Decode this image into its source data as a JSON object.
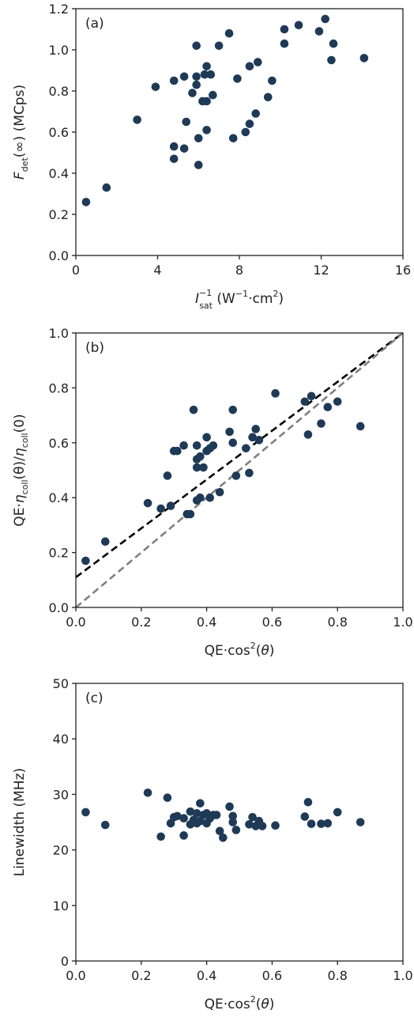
{
  "chart_data": [
    {
      "type": "scatter",
      "panel_label": "(a)",
      "xlabel": {
        "base": "I",
        "sub": "sat",
        "sup": "−1",
        "unit": "(W",
        "unit_sup": "−1",
        "unit_mid": "·cm",
        "unit_sup2": "2",
        "unit_end": ")"
      },
      "ylabel": {
        "base": "F",
        "sub": "det",
        "rest": "(∞) (MCps)"
      },
      "xlim": [
        0,
        16
      ],
      "ylim": [
        0,
        1.2
      ],
      "xticks": [
        "0",
        "4",
        "8",
        "12",
        "16"
      ],
      "yticks": [
        "0.0",
        "0.2",
        "0.4",
        "0.6",
        "0.8",
        "1.0",
        "1.2"
      ],
      "grid": false,
      "marker_color": "#1f3a56",
      "points": [
        [
          0.5,
          0.26
        ],
        [
          1.5,
          0.33
        ],
        [
          3.0,
          0.66
        ],
        [
          3.9,
          0.82
        ],
        [
          4.8,
          0.85
        ],
        [
          4.8,
          0.53
        ],
        [
          4.8,
          0.47
        ],
        [
          5.3,
          0.87
        ],
        [
          5.3,
          0.52
        ],
        [
          5.4,
          0.65
        ],
        [
          5.7,
          0.79
        ],
        [
          5.9,
          1.02
        ],
        [
          5.9,
          0.87
        ],
        [
          5.9,
          0.83
        ],
        [
          6.0,
          0.57
        ],
        [
          6.0,
          0.44
        ],
        [
          6.2,
          0.75
        ],
        [
          6.3,
          0.88
        ],
        [
          6.4,
          0.92
        ],
        [
          6.4,
          0.75
        ],
        [
          6.4,
          0.61
        ],
        [
          6.6,
          0.88
        ],
        [
          6.7,
          0.78
        ],
        [
          7.0,
          1.02
        ],
        [
          7.5,
          1.08
        ],
        [
          7.7,
          0.57
        ],
        [
          7.9,
          0.86
        ],
        [
          8.3,
          0.6
        ],
        [
          8.5,
          0.92
        ],
        [
          8.5,
          0.64
        ],
        [
          8.9,
          0.94
        ],
        [
          8.8,
          0.69
        ],
        [
          9.4,
          0.77
        ],
        [
          9.6,
          0.85
        ],
        [
          10.2,
          1.1
        ],
        [
          10.2,
          1.03
        ],
        [
          10.9,
          1.12
        ],
        [
          11.9,
          1.09
        ],
        [
          12.2,
          1.15
        ],
        [
          12.5,
          0.95
        ],
        [
          12.6,
          1.03
        ],
        [
          14.1,
          0.96
        ]
      ]
    },
    {
      "type": "scatter",
      "panel_label": "(b)",
      "xlabel": {
        "pre": "QE·cos",
        "sup": "2",
        "paren_open": "(",
        "theta": "θ",
        "paren_close": ")"
      },
      "ylabel": {
        "pre": "QE·",
        "eta": "η",
        "sub": "coll",
        "mid": "(θ)/",
        "eta2": "η",
        "sub2": "coll",
        "end": "(0)"
      },
      "xlim": [
        0,
        1.0
      ],
      "ylim": [
        0,
        1.0
      ],
      "xticks": [
        "0.0",
        "0.2",
        "0.4",
        "0.6",
        "0.8",
        "1.0"
      ],
      "yticks": [
        "0.0",
        "0.2",
        "0.4",
        "0.6",
        "0.8",
        "1.0"
      ],
      "grid": false,
      "marker_color": "#1f3a56",
      "lines": [
        {
          "style": "dashed",
          "color": "#000000",
          "x": [
            0,
            1.0
          ],
          "y": [
            0.11,
            1.0
          ]
        },
        {
          "style": "dashed",
          "color": "#808080",
          "x": [
            0,
            1.0
          ],
          "y": [
            0.0,
            1.0
          ]
        }
      ],
      "points": [
        [
          0.03,
          0.17
        ],
        [
          0.09,
          0.24
        ],
        [
          0.22,
          0.38
        ],
        [
          0.26,
          0.36
        ],
        [
          0.28,
          0.48
        ],
        [
          0.29,
          0.37
        ],
        [
          0.3,
          0.57
        ],
        [
          0.31,
          0.57
        ],
        [
          0.33,
          0.59
        ],
        [
          0.34,
          0.34
        ],
        [
          0.35,
          0.34
        ],
        [
          0.36,
          0.72
        ],
        [
          0.37,
          0.59
        ],
        [
          0.37,
          0.54
        ],
        [
          0.37,
          0.51
        ],
        [
          0.38,
          0.55
        ],
        [
          0.38,
          0.4
        ],
        [
          0.37,
          0.39
        ],
        [
          0.39,
          0.51
        ],
        [
          0.4,
          0.57
        ],
        [
          0.4,
          0.62
        ],
        [
          0.41,
          0.58
        ],
        [
          0.41,
          0.4
        ],
        [
          0.42,
          0.59
        ],
        [
          0.44,
          0.42
        ],
        [
          0.47,
          0.64
        ],
        [
          0.48,
          0.72
        ],
        [
          0.48,
          0.6
        ],
        [
          0.49,
          0.48
        ],
        [
          0.52,
          0.58
        ],
        [
          0.53,
          0.49
        ],
        [
          0.54,
          0.62
        ],
        [
          0.55,
          0.65
        ],
        [
          0.56,
          0.61
        ],
        [
          0.61,
          0.78
        ],
        [
          0.7,
          0.75
        ],
        [
          0.71,
          0.63
        ],
        [
          0.72,
          0.77
        ],
        [
          0.75,
          0.67
        ],
        [
          0.77,
          0.73
        ],
        [
          0.8,
          0.75
        ],
        [
          0.87,
          0.66
        ]
      ]
    },
    {
      "type": "scatter",
      "panel_label": "(c)",
      "xlabel": {
        "pre": "QE·cos",
        "sup": "2",
        "paren_open": "(",
        "theta": "θ",
        "paren_close": ")"
      },
      "ylabel": {
        "text": "Linewidth (MHz)"
      },
      "xlim": [
        0,
        1.0
      ],
      "ylim": [
        0,
        50
      ],
      "xticks": [
        "0.0",
        "0.2",
        "0.4",
        "0.6",
        "0.8",
        "1.0"
      ],
      "yticks": [
        "0",
        "10",
        "20",
        "30",
        "40",
        "50"
      ],
      "grid": false,
      "marker_color": "#1f3a56",
      "points": [
        [
          0.03,
          26.8
        ],
        [
          0.09,
          24.5
        ],
        [
          0.22,
          30.3
        ],
        [
          0.26,
          22.4
        ],
        [
          0.28,
          29.4
        ],
        [
          0.29,
          24.8
        ],
        [
          0.3,
          25.9
        ],
        [
          0.31,
          26.1
        ],
        [
          0.33,
          25.7
        ],
        [
          0.33,
          22.6
        ],
        [
          0.35,
          24.6
        ],
        [
          0.35,
          26.9
        ],
        [
          0.36,
          25.4
        ],
        [
          0.37,
          24.8
        ],
        [
          0.37,
          26.6
        ],
        [
          0.38,
          28.4
        ],
        [
          0.38,
          25.2
        ],
        [
          0.39,
          26.3
        ],
        [
          0.4,
          24.8
        ],
        [
          0.4,
          26.6
        ],
        [
          0.41,
          25.7
        ],
        [
          0.42,
          26.3
        ],
        [
          0.43,
          26.3
        ],
        [
          0.44,
          23.4
        ],
        [
          0.45,
          22.2
        ],
        [
          0.47,
          27.8
        ],
        [
          0.48,
          26.1
        ],
        [
          0.48,
          25.0
        ],
        [
          0.49,
          23.6
        ],
        [
          0.53,
          24.6
        ],
        [
          0.54,
          25.9
        ],
        [
          0.55,
          24.3
        ],
        [
          0.56,
          25.2
        ],
        [
          0.57,
          24.3
        ],
        [
          0.61,
          24.4
        ],
        [
          0.7,
          26.0
        ],
        [
          0.71,
          28.6
        ],
        [
          0.72,
          24.7
        ],
        [
          0.75,
          24.7
        ],
        [
          0.77,
          24.8
        ],
        [
          0.8,
          26.8
        ],
        [
          0.87,
          25.0
        ]
      ]
    }
  ]
}
